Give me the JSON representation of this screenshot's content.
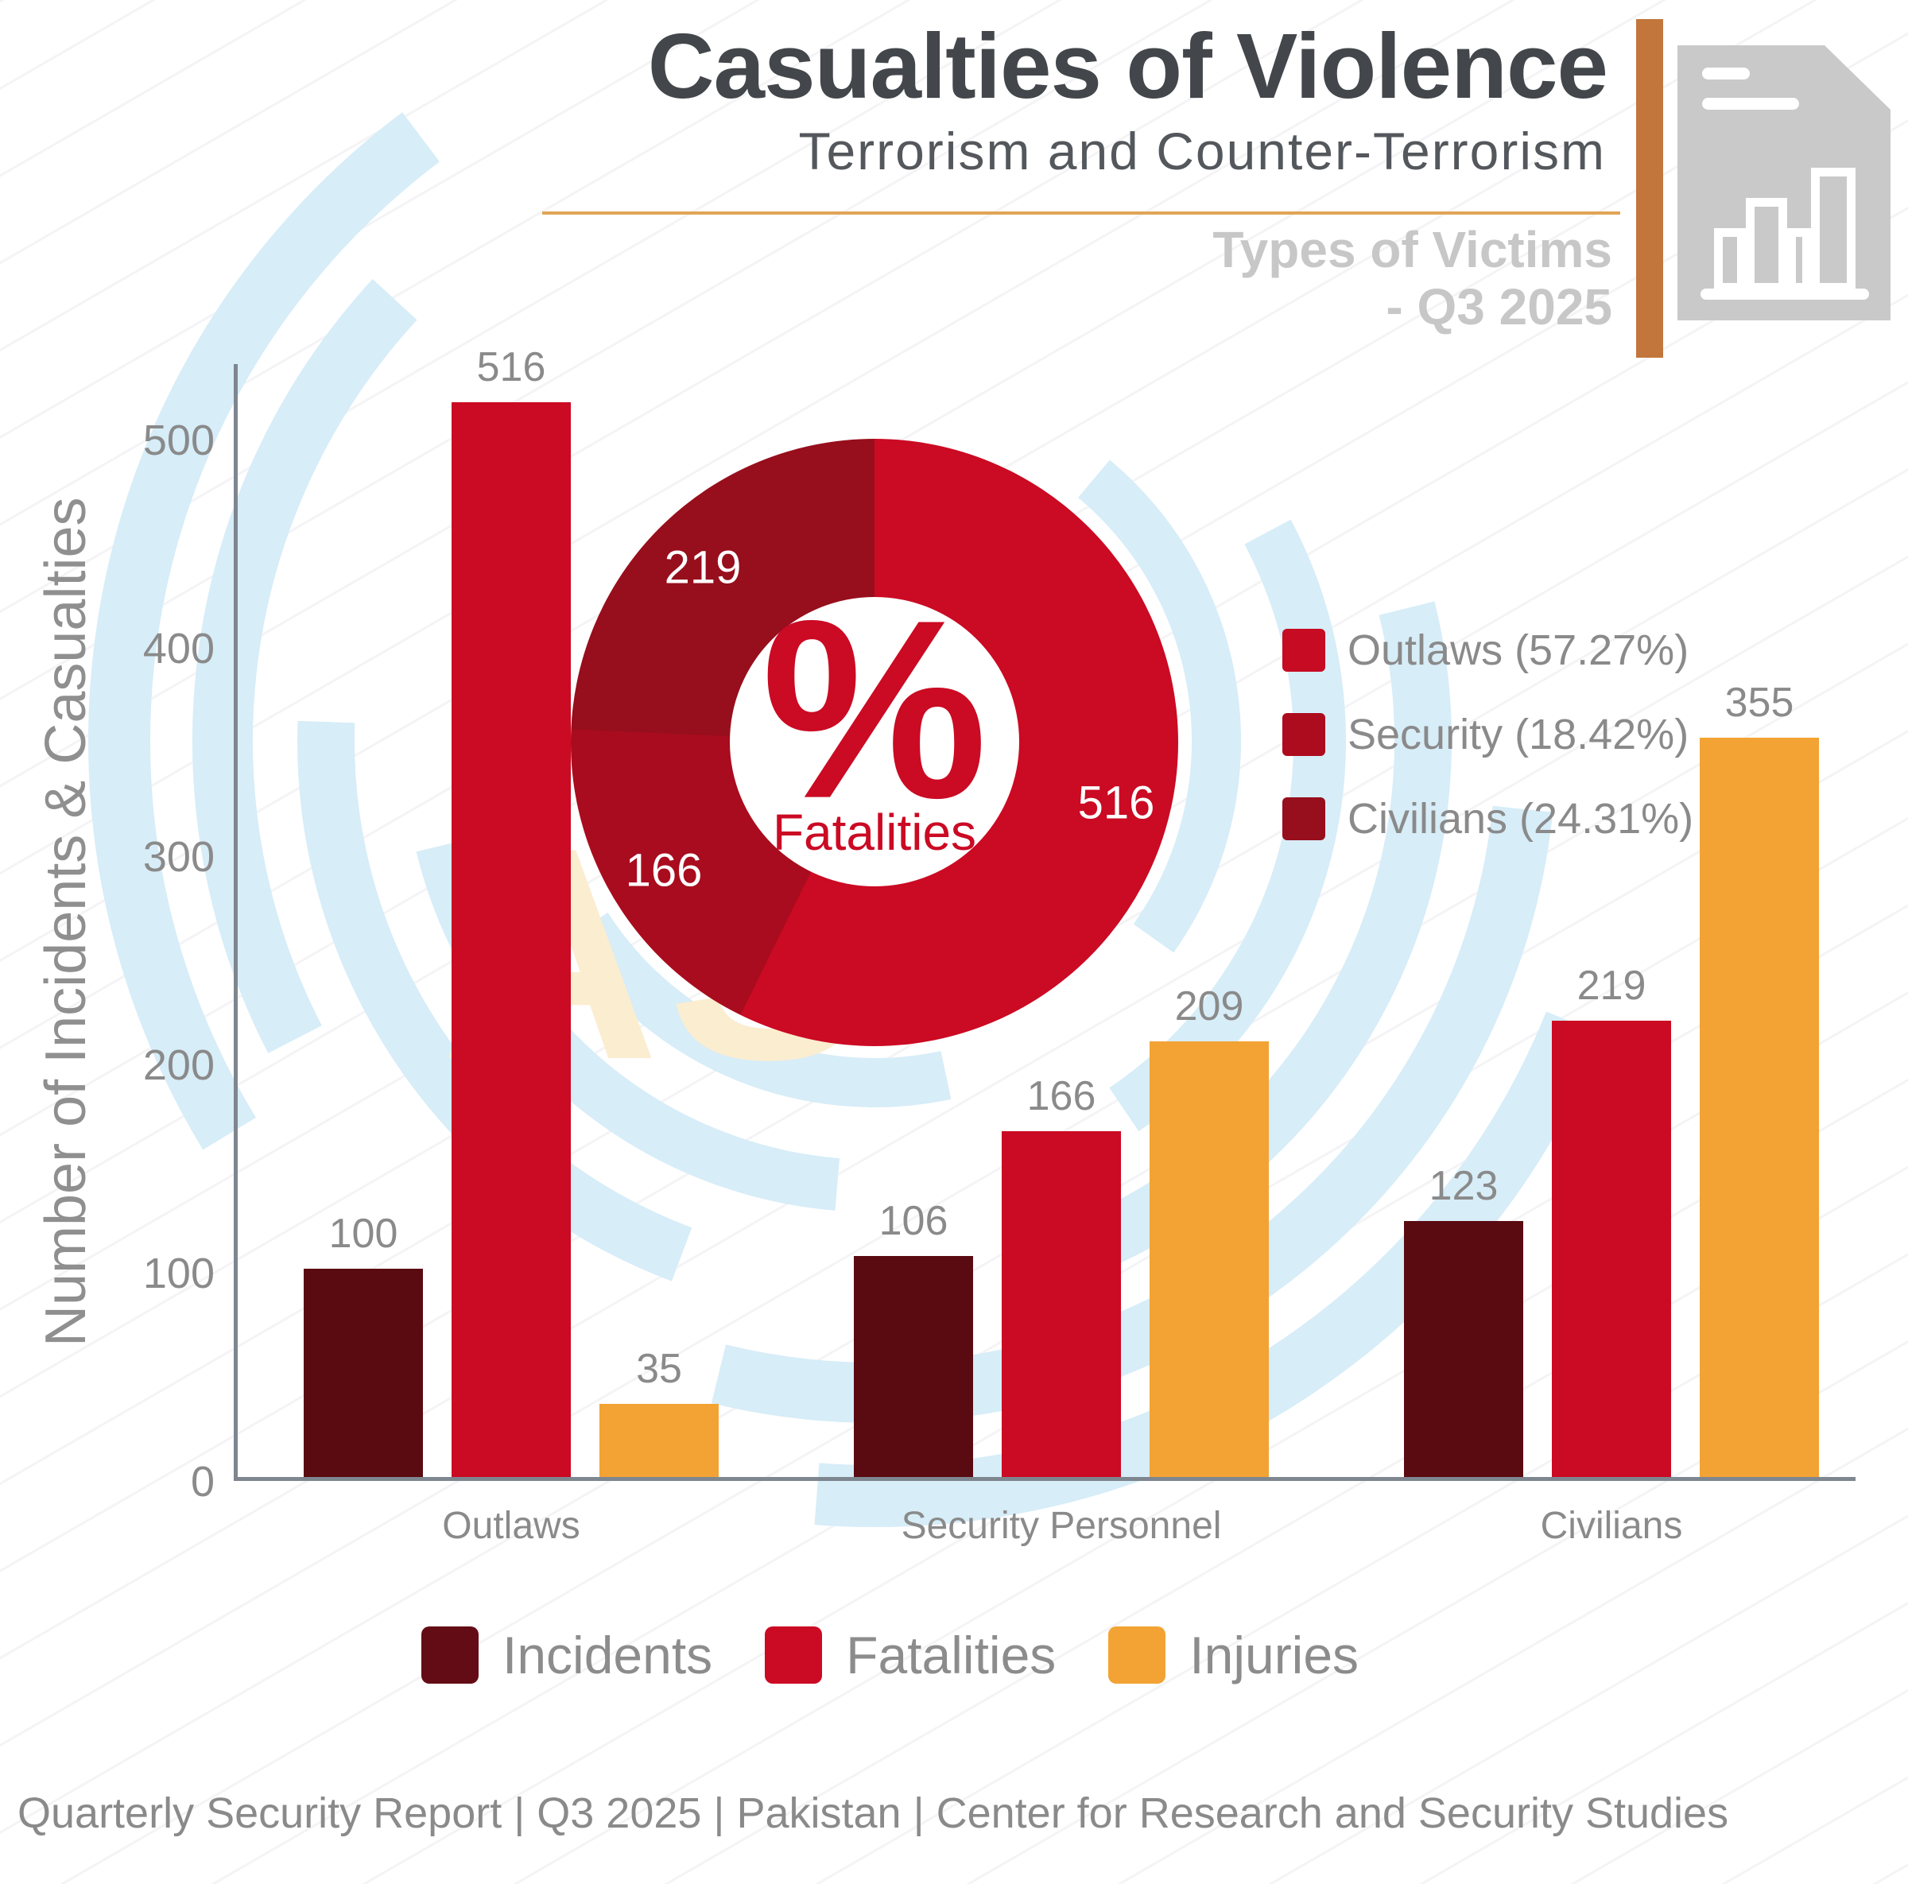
{
  "header": {
    "title": "Casualties of Violence",
    "subtitle": "Terrorism and Counter-Terrorism",
    "tagline_line1": "Types of Victims",
    "tagline_line2": "- Q3 2025"
  },
  "chart_data": [
    {
      "type": "bar",
      "title": "Casualties of Violence - Types of Victims - Q3 2025",
      "ylabel": "Number of Incidents & Casualties",
      "categories": [
        "Outlaws",
        "Security Personnel",
        "Civilians"
      ],
      "series": [
        {
          "name": "Incidents",
          "color": "#5A0B11",
          "values": [
            100,
            106,
            123
          ]
        },
        {
          "name": "Fatalities",
          "color": "#CB0A23",
          "values": [
            516,
            166,
            219
          ]
        },
        {
          "name": "Injuries",
          "color": "#F2A334",
          "values": [
            35,
            209,
            355
          ]
        }
      ],
      "ylim": [
        0,
        540
      ],
      "yticks": [
        0,
        100,
        200,
        300,
        400,
        500
      ],
      "grid": false,
      "legend_position": "bottom"
    },
    {
      "type": "pie",
      "title": "Fatalities",
      "labels": [
        "Outlaws",
        "Security",
        "Civilians"
      ],
      "values": [
        516,
        166,
        219
      ],
      "percentages": [
        "57.27%",
        "18.42%",
        "24.31%"
      ],
      "colors": [
        "#CB0A23",
        "#A90C1E",
        "#970E1C"
      ],
      "center_symbol": "%",
      "center_label": "Fatalities",
      "legend_entries": [
        "Outlaws (57.27%)",
        "Security (18.42%)",
        "Civilians (24.31%)"
      ],
      "legend_position": "right"
    }
  ],
  "footer": {
    "text": "Quarterly Security Report | Q3 2025 | Pakistan | Center for Research and Security Studies"
  }
}
